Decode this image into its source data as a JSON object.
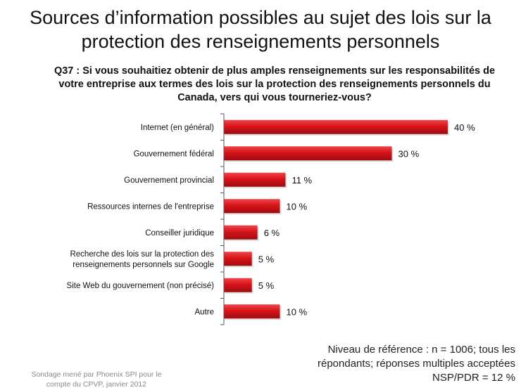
{
  "title": "Sources d’information possibles au sujet des lois sur la protection des renseignements personnels",
  "question": "Q37 : Si vous souhaitiez obtenir de plus amples renseignements sur les responsabilités de votre entreprise aux termes des lois sur la protection des renseignements personnels du Canada, vers qui vous tourneriez-vous?",
  "footnote": {
    "line1": "Niveau de référence : n = 1006; tous les",
    "line2": "répondants; réponses multiples acceptées",
    "line3": "NSP/PDR = 12 %"
  },
  "source": {
    "line1": "Sondage mené par Phoenix SPI pour le",
    "line2": "compte du CPVP, janvier 2012"
  },
  "colors": {
    "bar": "#d7141a",
    "bar_dark": "#9e0c10",
    "axis": "#555555"
  },
  "chart_data": {
    "type": "bar",
    "orientation": "horizontal",
    "categories": [
      [
        "Internet (en général)"
      ],
      [
        "Gouvernement fédéral"
      ],
      [
        "Gouvernement provincial"
      ],
      [
        "Ressources internes de l'entreprise"
      ],
      [
        "Conseiller juridique"
      ],
      [
        "Recherche des lois sur la protection des",
        "renseignements personnels sur Google"
      ],
      [
        "Site Web du gouvernement (non précisé)"
      ],
      [
        "Autre"
      ]
    ],
    "values": [
      40,
      30,
      11,
      10,
      6,
      5,
      5,
      10
    ],
    "value_labels": [
      "40 %",
      "30 %",
      "11 %",
      "10 %",
      "6 %",
      "5 %",
      "5 %",
      "10 %"
    ],
    "unit": "%",
    "xlim": [
      0,
      40
    ],
    "grid": false,
    "legend": "none"
  }
}
